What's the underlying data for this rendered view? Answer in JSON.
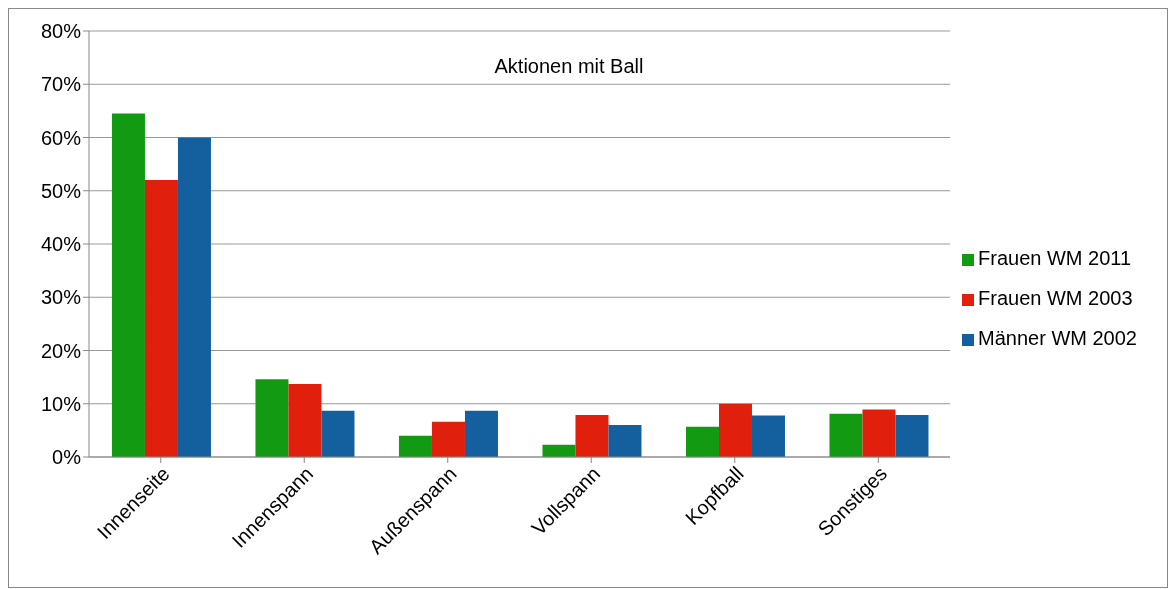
{
  "chart_data": {
    "type": "bar",
    "title": "Aktionen mit Ball",
    "categories": [
      "Innenseite",
      "Innenspann",
      "Außenspann",
      "Vollspann",
      "Kopfball",
      "Sonstiges"
    ],
    "series": [
      {
        "name": "Frauen WM 2011",
        "color": "#129a12",
        "values": [
          64.5,
          14.6,
          4.0,
          2.3,
          5.7,
          8.1
        ]
      },
      {
        "name": "Frauen WM 2003",
        "color": "#e0200c",
        "values": [
          52.0,
          13.7,
          6.6,
          7.9,
          10.0,
          8.9
        ]
      },
      {
        "name": "Männer WM 2002",
        "color": "#145f9e",
        "values": [
          60.0,
          8.7,
          8.7,
          6.0,
          7.8,
          7.9
        ]
      }
    ],
    "ylim": [
      0,
      80
    ],
    "yticks": [
      {
        "value": 0,
        "label": "0%"
      },
      {
        "value": 10,
        "label": "10%"
      },
      {
        "value": 20,
        "label": "20%"
      },
      {
        "value": 30,
        "label": "30%"
      },
      {
        "value": 40,
        "label": "40%"
      },
      {
        "value": 50,
        "label": "50%"
      },
      {
        "value": 60,
        "label": "60%"
      },
      {
        "value": 70,
        "label": "70%"
      },
      {
        "value": 80,
        "label": "80%"
      }
    ],
    "grid": "y",
    "legend": "right"
  }
}
